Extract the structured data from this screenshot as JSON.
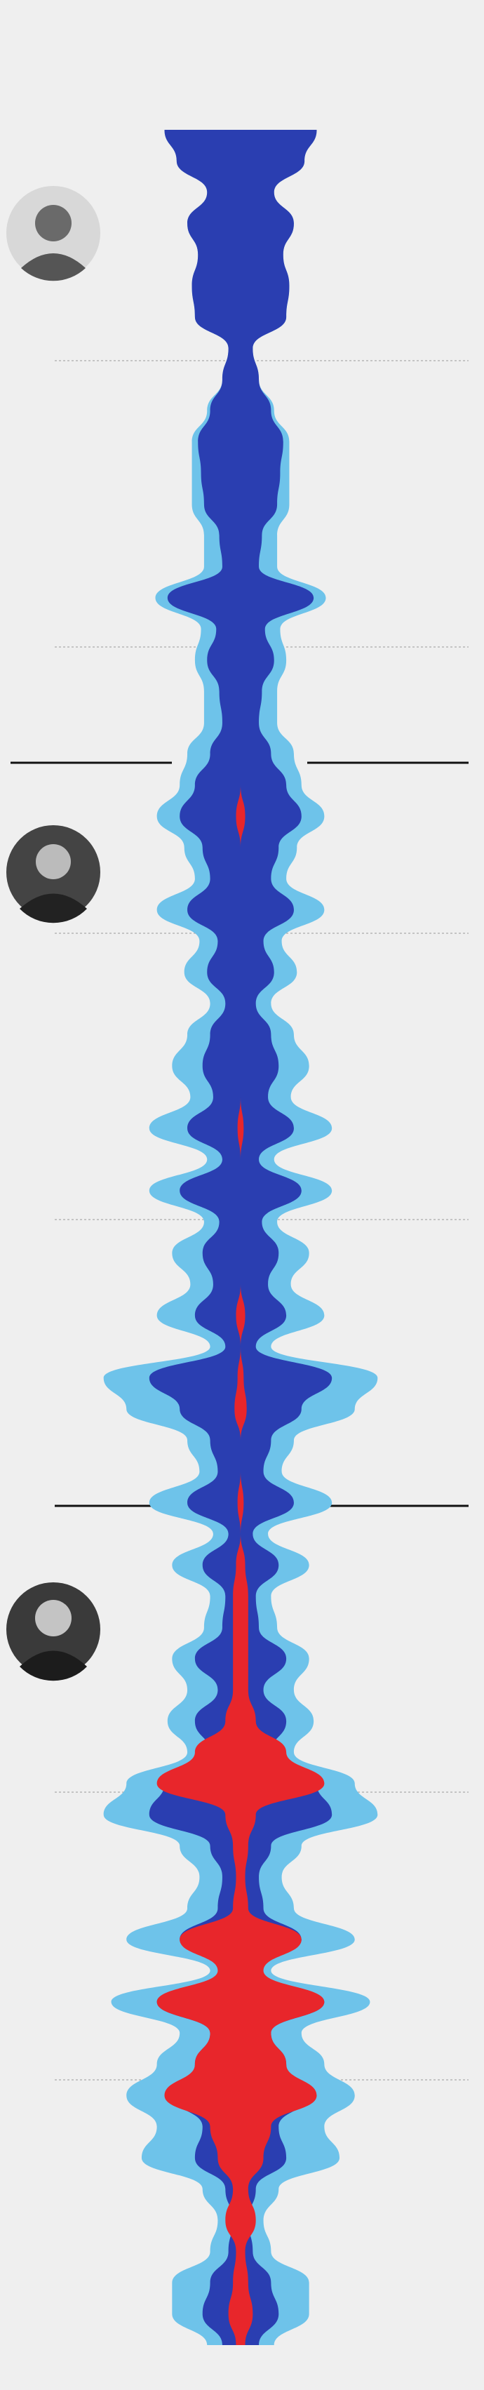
{
  "chart_data": {
    "type": "stream",
    "series": [
      {
        "color": "#2a3eb1",
        "values": [
          50,
          42,
          22,
          35,
          28,
          32,
          30,
          8,
          12,
          20,
          28,
          26,
          24,
          14,
          12,
          48,
          16,
          22,
          14,
          12,
          20,
          30,
          40,
          25,
          20,
          35,
          15,
          22,
          10,
          20,
          25,
          18,
          35,
          12,
          40,
          14,
          25,
          18,
          30,
          10,
          60,
          40,
          20,
          15,
          35,
          8,
          25,
          10,
          12,
          30,
          15,
          30,
          20,
          50,
          60,
          20,
          12,
          15,
          40,
          10,
          55,
          20,
          30,
          45,
          25,
          30,
          10,
          5,
          8,
          20,
          25,
          12
        ]
      },
      {
        "color": "#6ec3ea",
        "values": [
          0,
          0,
          0,
          0,
          0,
          0,
          0,
          0,
          0,
          2,
          4,
          6,
          8,
          10,
          12,
          8,
          10,
          8,
          10,
          12,
          15,
          10,
          15,
          12,
          10,
          20,
          12,
          15,
          10,
          15,
          20,
          15,
          25,
          10,
          20,
          10,
          20,
          15,
          25,
          10,
          30,
          35,
          15,
          12,
          25,
          10,
          20,
          10,
          12,
          15,
          20,
          18,
          15,
          25,
          30,
          20,
          15,
          20,
          35,
          10,
          30,
          20,
          25,
          30,
          30,
          35,
          15,
          10,
          12,
          25,
          20,
          10
        ]
      },
      {
        "color": "#e8262b",
        "values": [
          0,
          0,
          0,
          0,
          0,
          0,
          0,
          0,
          0,
          0,
          0,
          0,
          0,
          0,
          0,
          0,
          0,
          0,
          0,
          0,
          0,
          0,
          3,
          0,
          0,
          0,
          0,
          0,
          0,
          0,
          0,
          0,
          2,
          0,
          0,
          0,
          0,
          0,
          3,
          0,
          2,
          4,
          0,
          0,
          2,
          0,
          3,
          5,
          5,
          5,
          5,
          10,
          30,
          55,
          10,
          5,
          3,
          5,
          40,
          15,
          55,
          20,
          30,
          50,
          20,
          15,
          5,
          10,
          3,
          5,
          8,
          3
        ]
      }
    ]
  }
}
